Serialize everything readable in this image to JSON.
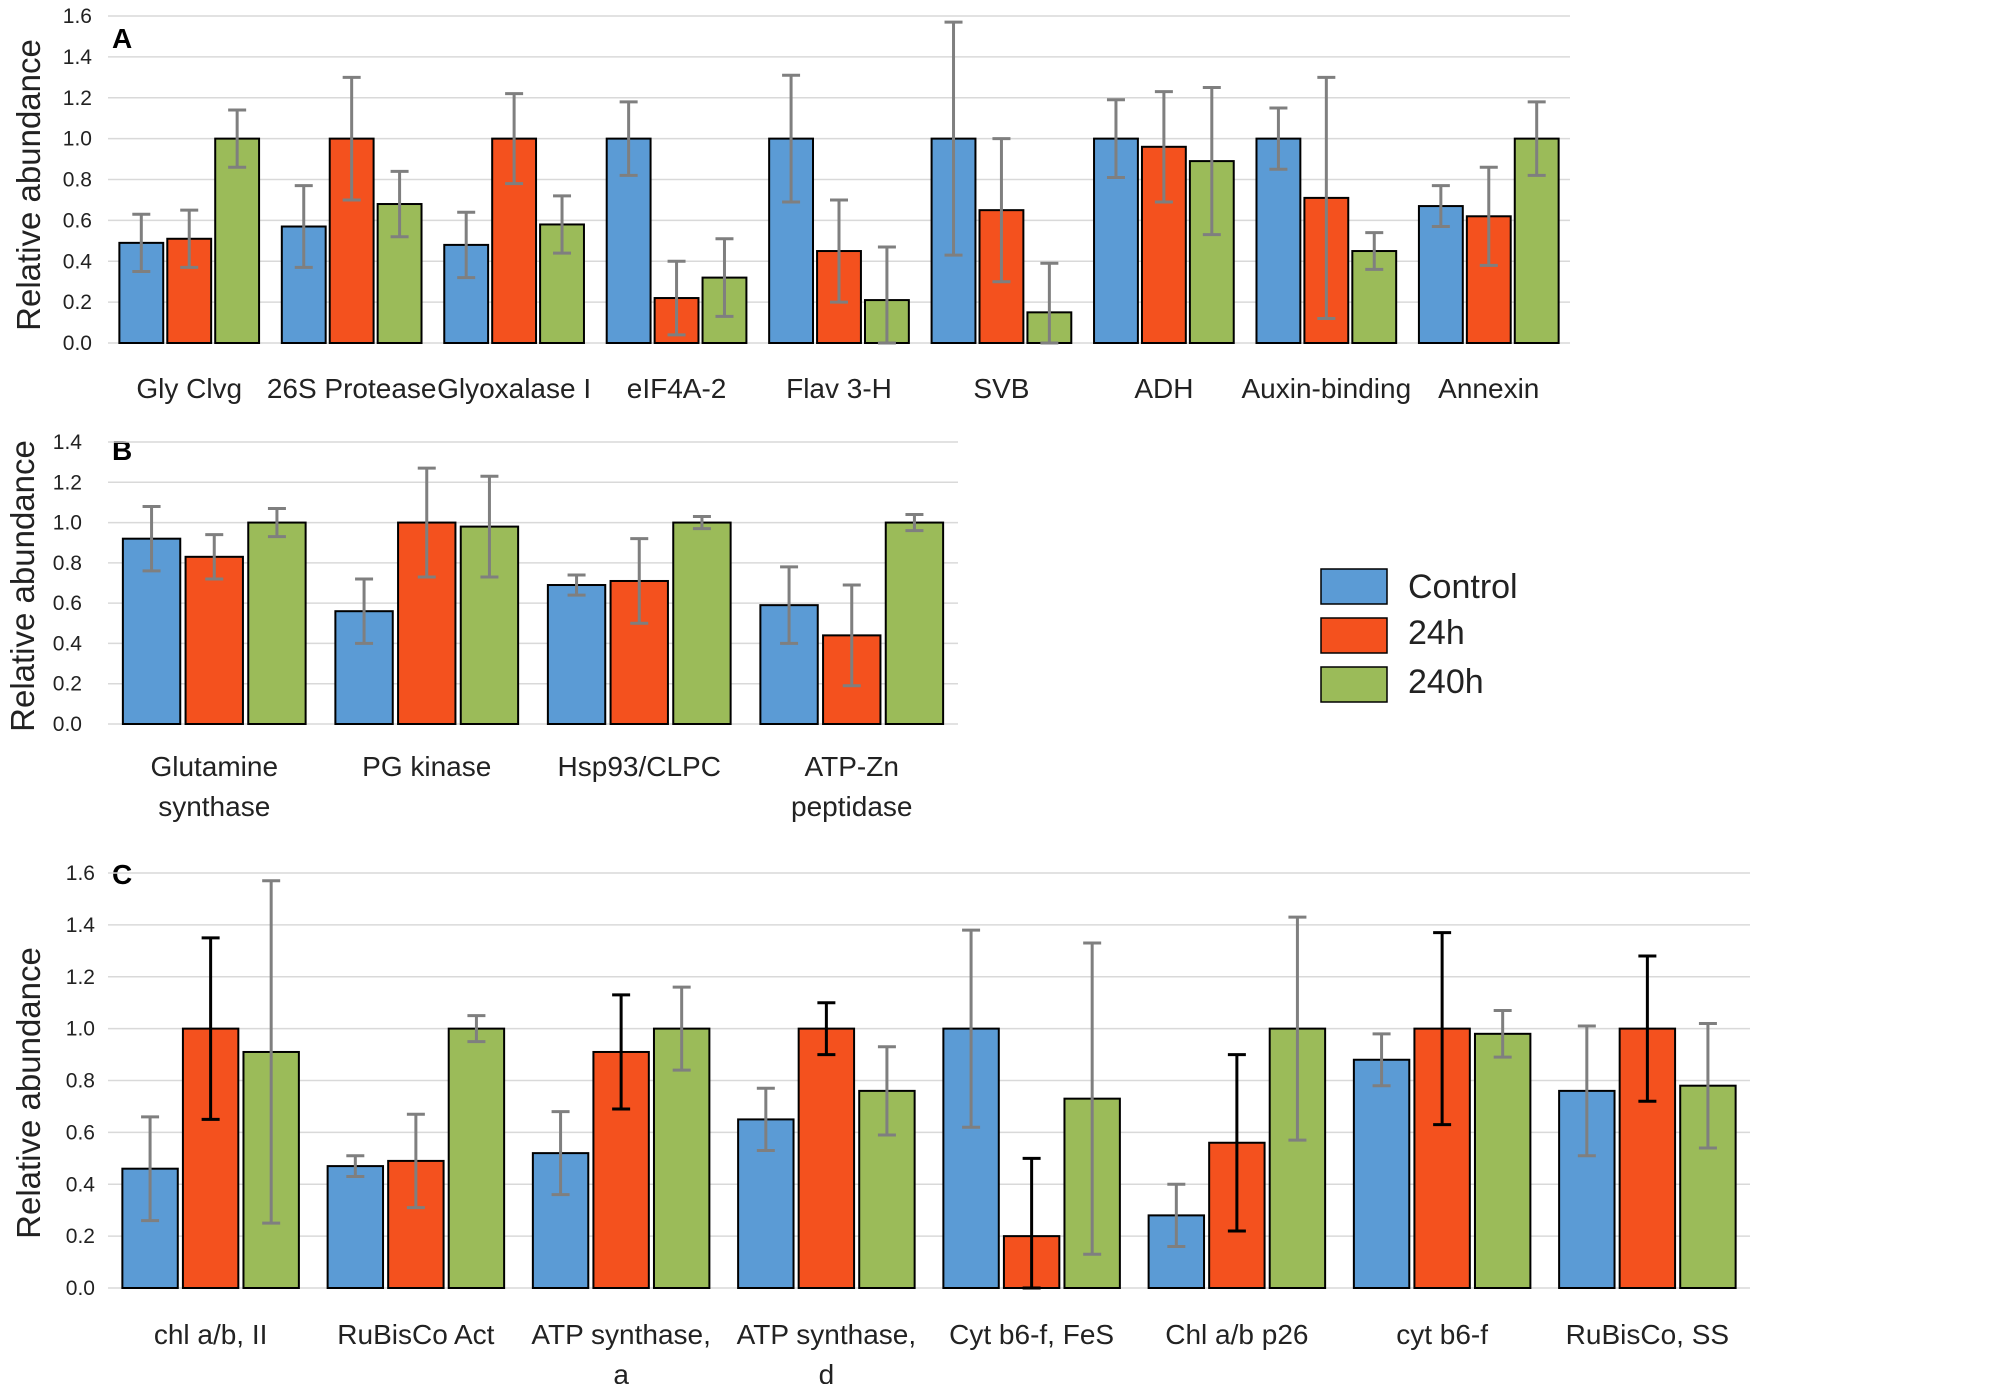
{
  "colors": {
    "Control": "#5b9bd5",
    "24h": "#f4511e",
    "240h": "#9bbb59",
    "err_gray": "#7f7f7f",
    "err_black": "#000000"
  },
  "legend": {
    "items": [
      "Control",
      "24h",
      "240h"
    ]
  },
  "chart_data": [
    {
      "panel": "A",
      "type": "bar",
      "ylabel": "Relative abundance",
      "ylim": [
        0,
        1.6
      ],
      "yticks": [
        "0.0",
        "0.2",
        "0.4",
        "0.6",
        "0.8",
        "1.0",
        "1.2",
        "1.4",
        "1.6"
      ],
      "categories": [
        [
          "Gly Clvg"
        ],
        [
          "26S Protease"
        ],
        [
          "Glyoxalase I"
        ],
        [
          "eIF4A-2"
        ],
        [
          "Flav 3-H"
        ],
        [
          "SVB"
        ],
        [
          "ADH"
        ],
        [
          "Auxin-binding"
        ],
        [
          "Annexin"
        ]
      ],
      "series": [
        {
          "name": "Control",
          "values": [
            0.49,
            0.57,
            0.48,
            1.0,
            1.0,
            1.0,
            1.0,
            1.0,
            0.67
          ],
          "errors": [
            0.14,
            0.2,
            0.16,
            0.18,
            0.31,
            0.57,
            0.19,
            0.15,
            0.1
          ]
        },
        {
          "name": "24h",
          "values": [
            0.51,
            1.0,
            1.0,
            0.22,
            0.45,
            0.65,
            0.96,
            0.71,
            0.62
          ],
          "errors": [
            0.14,
            0.3,
            0.22,
            0.18,
            0.25,
            0.35,
            0.27,
            0.59,
            0.24
          ]
        },
        {
          "name": "240h",
          "values": [
            1.0,
            0.68,
            0.58,
            0.32,
            0.21,
            0.15,
            0.89,
            0.45,
            1.0
          ],
          "errors": [
            0.14,
            0.16,
            0.14,
            0.19,
            0.26,
            0.24,
            0.36,
            0.09,
            0.18
          ]
        }
      ]
    },
    {
      "panel": "B",
      "type": "bar",
      "ylabel": "Relative abundance",
      "ylim": [
        0,
        1.4
      ],
      "yticks": [
        "0.0",
        "0.2",
        "0.4",
        "0.6",
        "0.8",
        "1.0",
        "1.2",
        "1.4"
      ],
      "categories": [
        [
          "Glutamine",
          "synthase"
        ],
        [
          "PG kinase"
        ],
        [
          "Hsp93/CLPC"
        ],
        [
          "ATP-Zn",
          "peptidase"
        ]
      ],
      "series": [
        {
          "name": "Control",
          "values": [
            0.92,
            0.56,
            0.69,
            0.59
          ],
          "errors": [
            0.16,
            0.16,
            0.05,
            0.19
          ]
        },
        {
          "name": "24h",
          "values": [
            0.83,
            1.0,
            0.71,
            0.44
          ],
          "errors": [
            0.11,
            0.27,
            0.21,
            0.25
          ]
        },
        {
          "name": "240h",
          "values": [
            1.0,
            0.98,
            1.0,
            1.0
          ],
          "errors": [
            0.07,
            0.25,
            0.03,
            0.04
          ]
        }
      ]
    },
    {
      "panel": "C",
      "type": "bar",
      "ylabel": "Relative abundance",
      "ylim": [
        0,
        1.6
      ],
      "yticks": [
        "0.0",
        "0.2",
        "0.4",
        "0.6",
        "0.8",
        "1.0",
        "1.2",
        "1.4",
        "1.6"
      ],
      "categories": [
        [
          "chl a/b, II"
        ],
        [
          "RuBisCo Act"
        ],
        [
          "ATP synthase,",
          "a"
        ],
        [
          "ATP synthase,",
          "d"
        ],
        [
          "Cyt b6-f, FeS"
        ],
        [
          "Chl a/b p26"
        ],
        [
          "cyt b6-f"
        ],
        [
          "RuBisCo, SS"
        ]
      ],
      "series": [
        {
          "name": "Control",
          "values": [
            0.46,
            0.47,
            0.52,
            0.65,
            1.0,
            0.28,
            0.88,
            0.76
          ],
          "errors": [
            0.2,
            0.04,
            0.16,
            0.12,
            0.38,
            0.12,
            0.1,
            0.25
          ],
          "error_color": [
            "gray",
            "gray",
            "gray",
            "gray",
            "gray",
            "gray",
            "gray",
            "gray"
          ]
        },
        {
          "name": "24h",
          "values": [
            1.0,
            0.49,
            0.91,
            1.0,
            0.2,
            0.56,
            1.0,
            1.0
          ],
          "errors": [
            0.35,
            0.18,
            0.22,
            0.1,
            0.3,
            0.34,
            0.37,
            0.28
          ],
          "error_color": [
            "black",
            "gray",
            "black",
            "black",
            "black",
            "black",
            "black",
            "black"
          ]
        },
        {
          "name": "240h",
          "values": [
            0.91,
            1.0,
            1.0,
            0.76,
            0.73,
            1.0,
            0.98,
            0.78
          ],
          "errors": [
            0.66,
            0.05,
            0.16,
            0.17,
            0.6,
            0.43,
            0.09,
            0.24
          ],
          "error_color": [
            "gray",
            "gray",
            "gray",
            "gray",
            "gray",
            "gray",
            "gray",
            "gray"
          ]
        }
      ]
    }
  ]
}
